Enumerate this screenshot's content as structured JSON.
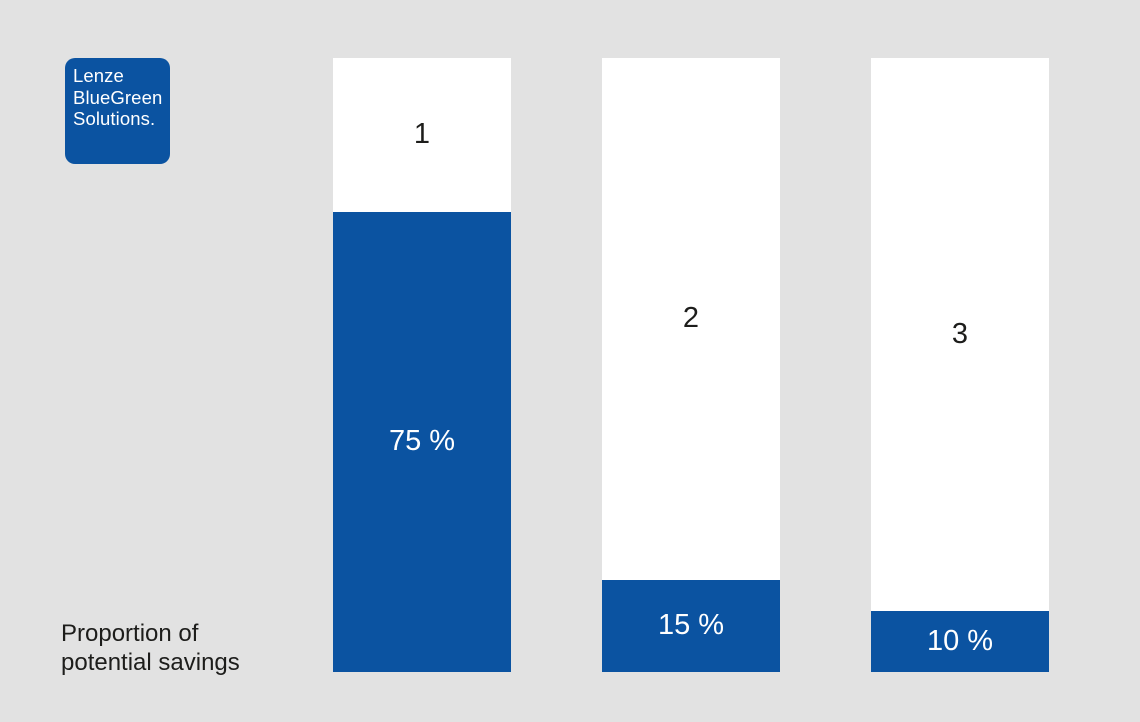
{
  "colors": {
    "page_bg": "#e2e2e2",
    "brand_blue": "#0b53a1",
    "bar_white": "#ffffff",
    "text_dark": "#1d1d1b",
    "text_light": "#ffffff"
  },
  "logo": {
    "lines": [
      "Lenze",
      "BlueGreen",
      "Solutions."
    ]
  },
  "caption": {
    "line1": "Proportion of",
    "line2": "potential savings"
  },
  "chart_data": {
    "type": "bar",
    "title": "Proportion of potential savings",
    "categories": [
      "1",
      "2",
      "3"
    ],
    "values": [
      75,
      15,
      10
    ],
    "value_labels": [
      "75 %",
      "15 %",
      "10 %"
    ],
    "unit": "%",
    "ylim": [
      0,
      100
    ],
    "orientation": "vertical",
    "grid": false,
    "legend": "none",
    "notes": "Each column drawn at full 100% height in white; blue segment from bottom represents the value; category number centered in remaining white segment."
  }
}
